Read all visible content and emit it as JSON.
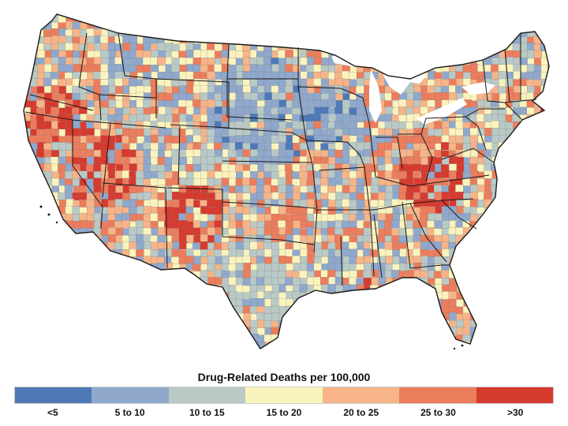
{
  "legend": {
    "title": "Drug-Related Deaths per 100,000",
    "bins": [
      {
        "label": "<5",
        "color": "#4e79b6"
      },
      {
        "label": "5 to 10",
        "color": "#8fa8cc"
      },
      {
        "label": "10 to 15",
        "color": "#b9c9c5"
      },
      {
        "label": "15 to 20",
        "color": "#fbf3bd"
      },
      {
        "label": "20 to 25",
        "color": "#f6b488"
      },
      {
        "label": "25 to 30",
        "color": "#ec7d5c"
      },
      {
        "label": ">30",
        "color": "#d73a2e"
      }
    ]
  },
  "map": {
    "region": "Contiguous United States, county level",
    "background_color": "#ffffff",
    "state_border_color": "#1a1a1a"
  }
}
